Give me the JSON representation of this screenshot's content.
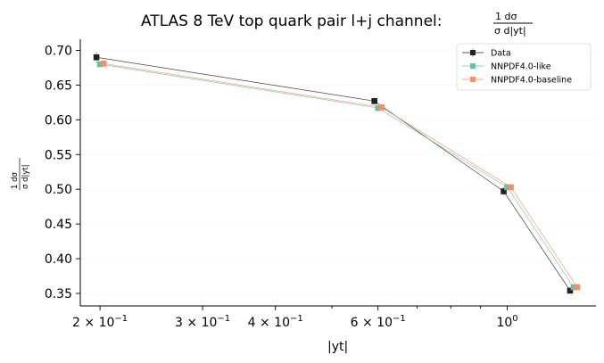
{
  "chart_data": {
    "type": "line",
    "title": "ATLAS 8 TeV top quark pair l+j channel: ",
    "title_fraction": {
      "numerator": "1  dσ",
      "denominator": "σ d|yt|"
    },
    "xlabel": "|yt|",
    "ylabel": {
      "numerator": "1  dσ",
      "denominator": "σ d|yt|"
    },
    "x_scale": "log",
    "xlim": [
      0.185,
      1.42
    ],
    "ylim": [
      0.332,
      0.716
    ],
    "x_ticks": [
      {
        "value": 0.2,
        "base": "2 × 10",
        "exp": "−1"
      },
      {
        "value": 0.3,
        "base": "3 × 10",
        "exp": "−1"
      },
      {
        "value": 0.4,
        "base": "4 × 10",
        "exp": "−1"
      },
      {
        "value": 0.6,
        "base": "6 × 10",
        "exp": "−1"
      },
      {
        "value": 1.0,
        "base": "10",
        "exp": "0"
      }
    ],
    "y_ticks": [
      {
        "value": 0.35,
        "label": "0.35"
      },
      {
        "value": 0.4,
        "label": "0.40"
      },
      {
        "value": 0.45,
        "label": "0.45"
      },
      {
        "value": 0.5,
        "label": "0.50"
      },
      {
        "value": 0.55,
        "label": "0.55"
      },
      {
        "value": 0.6,
        "label": "0.60"
      },
      {
        "value": 0.65,
        "label": "0.65"
      },
      {
        "value": 0.7,
        "label": "0.70"
      }
    ],
    "grid": true,
    "legend_position": "top-right",
    "series": [
      {
        "name": "Data",
        "color": "#222222",
        "marker": "square",
        "x": [
          0.2,
          0.6,
          1.0,
          1.3
        ],
        "y": [
          0.69,
          0.627,
          0.497,
          0.354
        ],
        "yerr": [
          0.008,
          0.005,
          0.006,
          0.004
        ]
      },
      {
        "name": "NNPDF4.0-like",
        "color": "#66c2a5",
        "marker": "square",
        "x": [
          0.2,
          0.6,
          1.0,
          1.3
        ],
        "y": [
          0.68,
          0.617,
          0.503,
          0.359
        ]
      },
      {
        "name": "NNPDF4.0-baseline",
        "color": "#fc8d62",
        "marker": "square",
        "x": [
          0.2,
          0.6,
          1.0,
          1.3
        ],
        "y": [
          0.681,
          0.618,
          0.503,
          0.359
        ]
      }
    ]
  }
}
